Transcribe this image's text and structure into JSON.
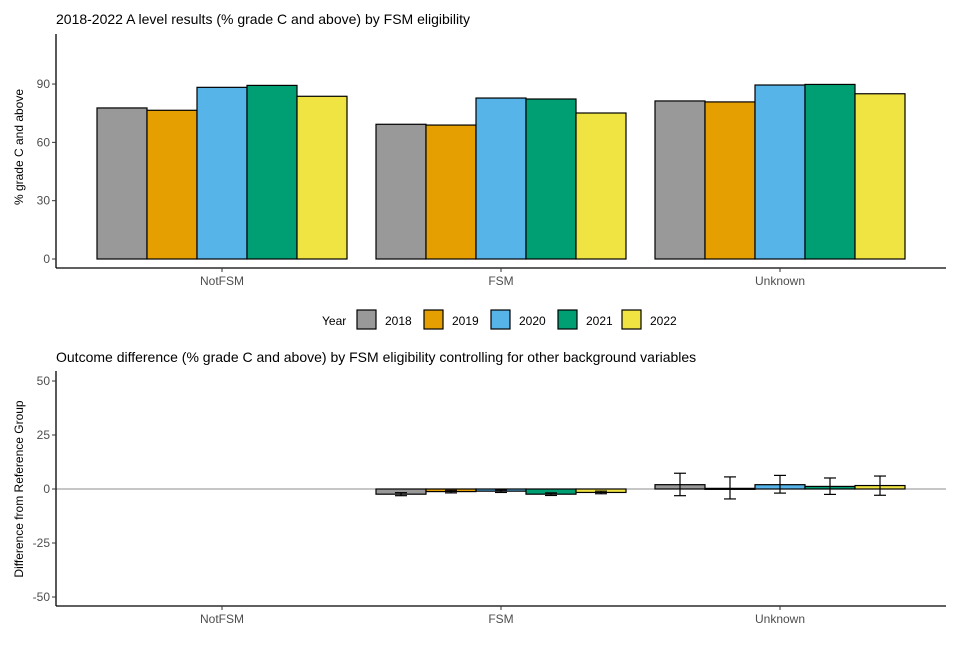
{
  "chart_data": [
    {
      "type": "bar",
      "title": "2018-2022 A level results (% grade C and above) by FSM eligibility",
      "xlabel": "",
      "ylabel": "% grade C and above",
      "categories": [
        "NotFSM",
        "FSM",
        "Unknown"
      ],
      "yticks": [
        0,
        30,
        60,
        90
      ],
      "ylim": [
        -4.7,
        115.7
      ],
      "grid": false,
      "series": [
        {
          "name": "2018",
          "color": "#999999",
          "values": [
            77.7,
            69.3,
            81.3
          ]
        },
        {
          "name": "2019",
          "color": "#E69F00",
          "values": [
            76.5,
            68.9,
            80.8
          ]
        },
        {
          "name": "2020",
          "color": "#56B4E9",
          "values": [
            88.3,
            82.8,
            89.5
          ]
        },
        {
          "name": "2021",
          "color": "#009E73",
          "values": [
            89.3,
            82.3,
            89.8
          ]
        },
        {
          "name": "2022",
          "color": "#F0E442",
          "values": [
            83.7,
            75.1,
            85.0
          ]
        }
      ],
      "legend": {
        "title": "Year",
        "position": "bottom"
      }
    },
    {
      "type": "bar",
      "title": "Outcome difference (% grade C and above) by FSM eligibility controlling for other background variables",
      "xlabel": "",
      "ylabel": "Difference from Reference Group",
      "categories": [
        "NotFSM",
        "FSM",
        "Unknown"
      ],
      "yticks": [
        -50,
        -25,
        0,
        25,
        50
      ],
      "ylim": [
        -54,
        57
      ],
      "grid": false,
      "reference_line": 0,
      "series": [
        {
          "name": "2018",
          "color": "#999999",
          "values": [
            null,
            -2.4,
            2.0
          ],
          "err_low": [
            null,
            -3.1,
            -3.1
          ],
          "err_high": [
            null,
            -1.7,
            7.3
          ]
        },
        {
          "name": "2019",
          "color": "#E69F00",
          "values": [
            null,
            -1.2,
            0.3
          ],
          "err_low": [
            null,
            -1.8,
            -4.6
          ],
          "err_high": [
            null,
            -0.6,
            5.6
          ]
        },
        {
          "name": "2020",
          "color": "#56B4E9",
          "values": [
            null,
            -1.0,
            2.0
          ],
          "err_low": [
            null,
            -1.6,
            -1.9
          ],
          "err_high": [
            null,
            -0.4,
            6.3
          ]
        },
        {
          "name": "2021",
          "color": "#009E73",
          "values": [
            null,
            -2.4,
            1.2
          ],
          "err_low": [
            null,
            -3.0,
            -2.5
          ],
          "err_high": [
            null,
            -1.8,
            5.1
          ]
        },
        {
          "name": "2022",
          "color": "#F0E442",
          "values": [
            null,
            -1.6,
            1.6
          ],
          "err_low": [
            null,
            -2.2,
            -2.9
          ],
          "err_high": [
            null,
            -1.0,
            6.0
          ]
        }
      ]
    }
  ]
}
